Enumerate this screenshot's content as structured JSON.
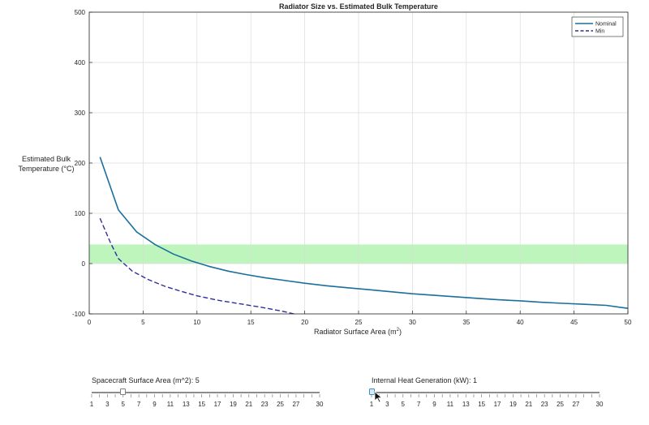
{
  "colors": {
    "nominal": "#1b6f9c",
    "min": "#2e2e9a",
    "band": "#bdf5bd",
    "grid": "#dcdcdc",
    "plot_bg": "#ffffff"
  },
  "chart_data": {
    "type": "line",
    "title": "Radiator Size vs. Estimated Bulk Temperature",
    "xlabel_main": "Radiator  Surface  Area  (m",
    "xlabel_sup": "2",
    "xlabel_close": ")",
    "ylabel_line1": "Estimated Bulk",
    "ylabel_line2": "Temperature (°C)",
    "xlim": [
      0,
      50
    ],
    "ylim": [
      -100,
      500
    ],
    "xticks": [
      0,
      5,
      10,
      15,
      20,
      25,
      30,
      35,
      40,
      45,
      50
    ],
    "yticks": [
      -100,
      0,
      100,
      200,
      300,
      400,
      500
    ],
    "grid": true,
    "legend_position": "top-right",
    "band": {
      "y_from": 0,
      "y_to": 38
    },
    "series": [
      {
        "name": "Nominal",
        "style": "solid",
        "x": [
          1,
          2.7,
          4.4,
          6.1,
          7.8,
          9.5,
          11.2,
          12.9,
          14.6,
          16.3,
          18,
          20,
          22,
          24,
          26,
          28,
          30,
          32,
          34,
          36,
          38,
          40,
          42,
          44,
          46,
          48,
          50
        ],
        "y": [
          212,
          107,
          63,
          38,
          19,
          5,
          -6,
          -15,
          -22,
          -28,
          -33,
          -39,
          -44,
          -48,
          -52,
          -56,
          -60,
          -63,
          -66,
          -69,
          -72,
          -74,
          -77,
          -79,
          -81,
          -83,
          -89
        ]
      },
      {
        "name": "Min",
        "style": "dashed",
        "x": [
          1,
          2,
          2.7,
          4,
          5.5,
          7,
          8.5,
          10,
          12,
          14,
          16,
          18,
          19
        ],
        "y": [
          90,
          40,
          10,
          -15,
          -32,
          -45,
          -55,
          -64,
          -73,
          -80,
          -87,
          -95,
          -100
        ]
      }
    ]
  },
  "sliders": [
    {
      "label": "Spacecraft Surface Area (m^2): 5",
      "value": 5,
      "min": 1,
      "max": 30,
      "tick_labels": [
        "1",
        "3",
        "5",
        "7",
        "9",
        "11",
        "13",
        "15",
        "17",
        "19",
        "21",
        "23",
        "25",
        "27",
        "30"
      ]
    },
    {
      "label": "Internal Heat Generation (kW): 1",
      "value": 1,
      "min": 1,
      "max": 30,
      "tick_labels": [
        "1",
        "3",
        "5",
        "7",
        "9",
        "11",
        "13",
        "15",
        "17",
        "19",
        "21",
        "23",
        "25",
        "27",
        "30"
      ]
    }
  ]
}
